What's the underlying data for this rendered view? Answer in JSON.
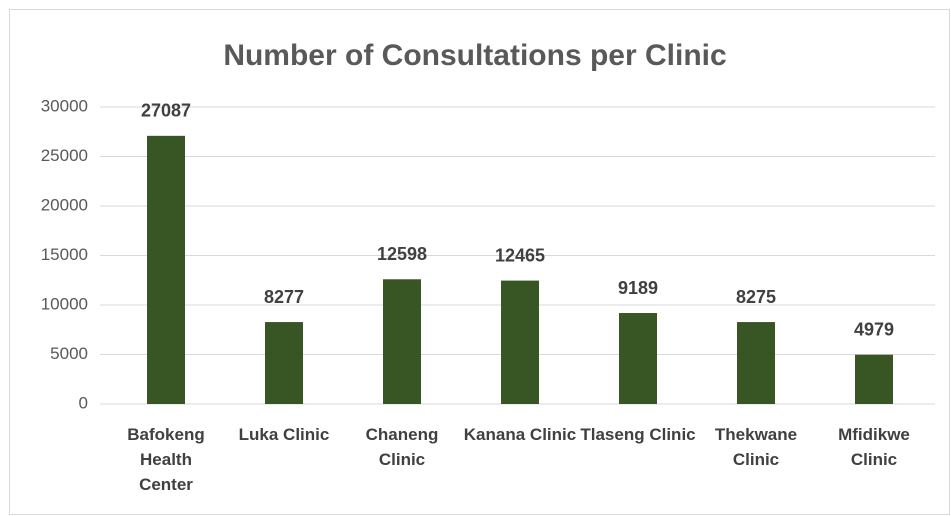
{
  "chart_data": {
    "type": "bar",
    "title": "Number of Consultations per Clinic",
    "categories": [
      "Bafokeng Health Center",
      "Luka Clinic",
      "Chaneng Clinic",
      "Kanana Clinic",
      "Tlaseng Clinic",
      "Thekwane Clinic",
      "Mfidikwe Clinic"
    ],
    "values": [
      27087,
      8277,
      12598,
      12465,
      9189,
      8275,
      4979
    ],
    "color": "#375623",
    "ylim": [
      0,
      30000
    ],
    "yticks": [
      0,
      5000,
      10000,
      15000,
      20000,
      25000,
      30000
    ],
    "grid": true
  }
}
